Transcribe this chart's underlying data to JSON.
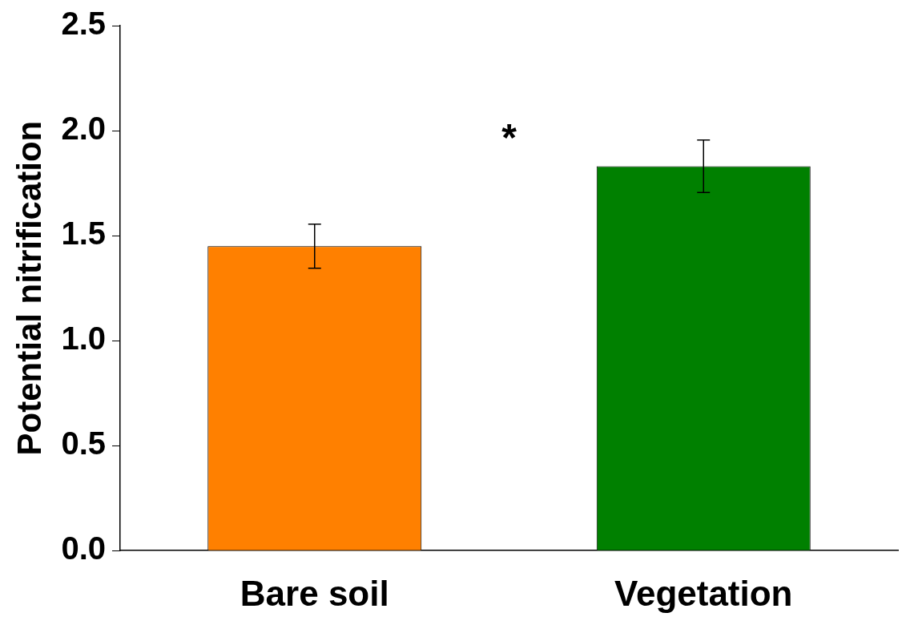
{
  "chart_data": {
    "type": "bar",
    "ylabel": "Potential nitrification",
    "categories": [
      "Bare soil",
      "Vegetation"
    ],
    "values": [
      1.45,
      1.83
    ],
    "colors": [
      "#ff8000",
      "#008000"
    ],
    "errors": [
      0.105,
      0.125
    ],
    "ylim": [
      0,
      2.5
    ],
    "yticks": [
      {
        "value": 0,
        "label": "0.0"
      },
      {
        "value": 0.5,
        "label": "0.5"
      },
      {
        "value": 1,
        "label": "1.0"
      },
      {
        "value": 1.5,
        "label": "1.5"
      },
      {
        "value": 2,
        "label": "2.0"
      },
      {
        "value": 2.5,
        "label": "2.5"
      }
    ],
    "annotations": [
      "*"
    ],
    "grid": false,
    "legend": false
  }
}
